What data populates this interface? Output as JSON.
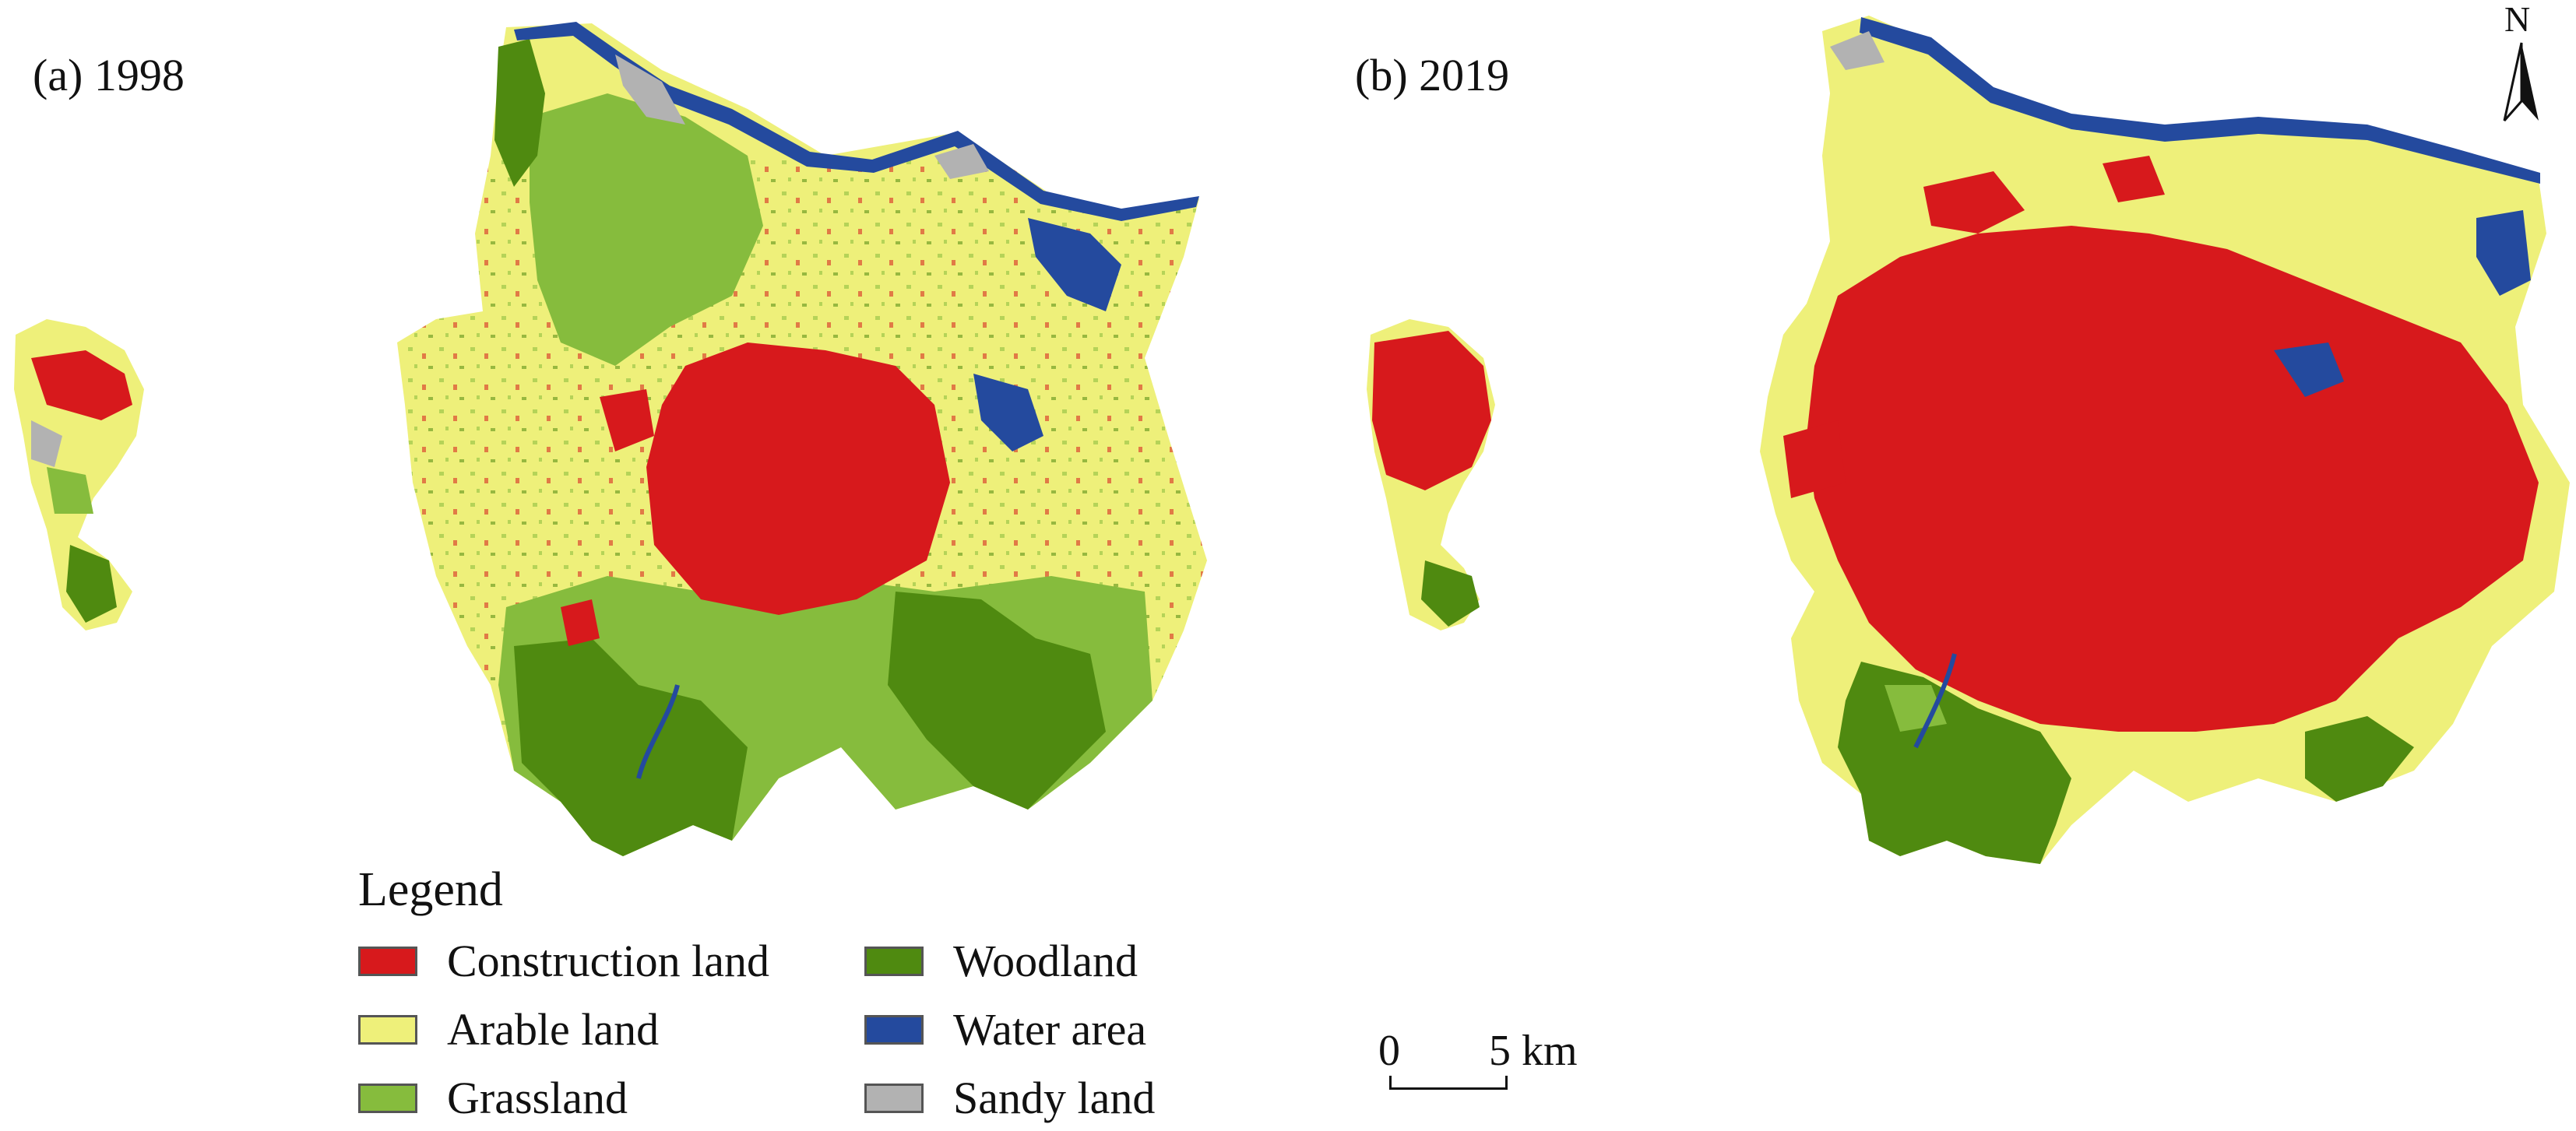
{
  "panels": [
    {
      "label": "(a) 1998"
    },
    {
      "label": "(b) 2019"
    }
  ],
  "legend": {
    "title": "Legend",
    "items": [
      {
        "label": "Construction land",
        "color": "#d7191c",
        "icon": "red-swatch"
      },
      {
        "label": "Woodland",
        "color": "#4f8a10",
        "icon": "dark-green-swatch"
      },
      {
        "label": "Arable land",
        "color": "#eef07a",
        "icon": "yellow-swatch"
      },
      {
        "label": "Water area",
        "color": "#244a9e",
        "icon": "blue-swatch"
      },
      {
        "label": "Grassland",
        "color": "#86bc3d",
        "icon": "light-green-swatch"
      },
      {
        "label": "Sandy land",
        "color": "#b2b2b2",
        "icon": "gray-swatch"
      }
    ]
  },
  "scale_bar": {
    "start_label": "0",
    "end_label": "5 km"
  },
  "north_arrow": {
    "label": "N",
    "icon": "north-arrow-icon"
  }
}
